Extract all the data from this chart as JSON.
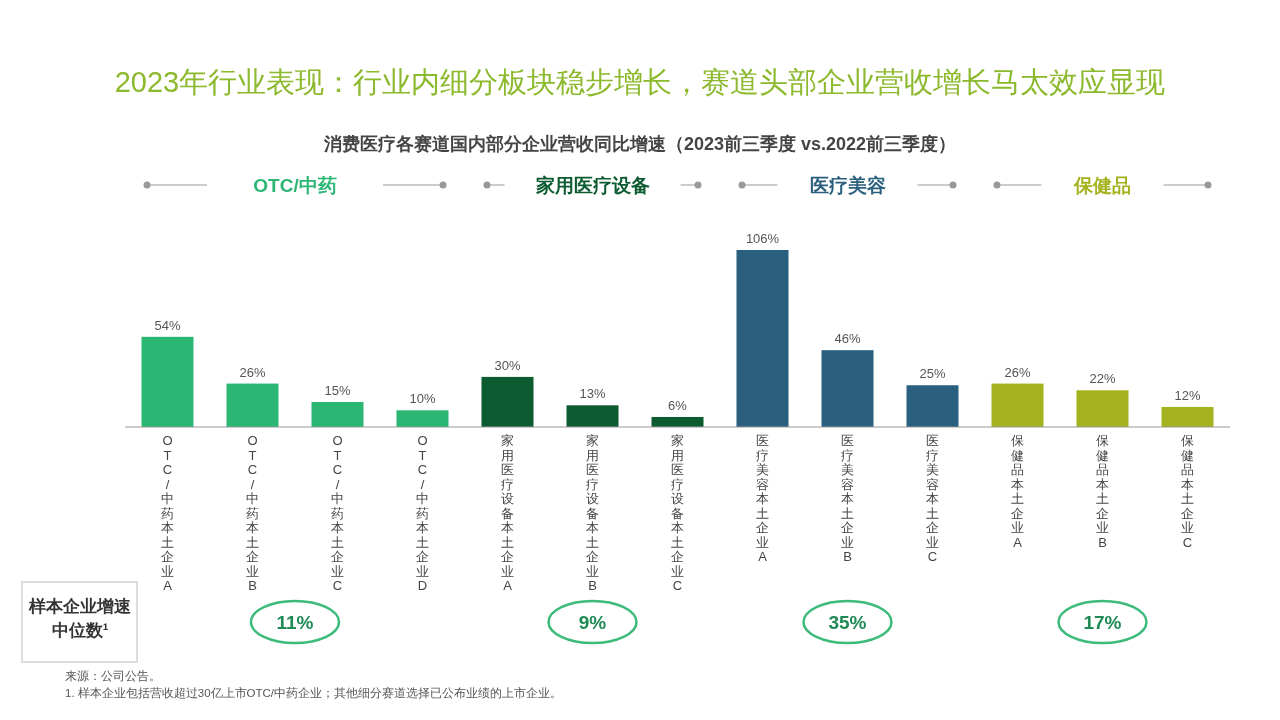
{
  "chart_data": {
    "type": "bar",
    "title": "2023年行业表现：行业内细分板块稳步增长，赛道头部企业营收增长马太效应显现",
    "subtitle": "消费医疗各赛道国内部分企业营收同比增速（2023前三季度 vs.2022前三季度）",
    "categories": [
      "OTC/中药本土企业A",
      "OTC/中药本土企业B",
      "OTC/中药本土企业C",
      "OTC/中药本土企业D",
      "家用医疗设备本土企业A",
      "家用医疗设备本土企业B",
      "家用医疗设备本土企业C",
      "医疗美容本土企业A",
      "医疗美容本土企业B",
      "医疗美容本土企业C",
      "保健品本土企业A",
      "保健品本土企业B",
      "保健品本土企业C"
    ],
    "values": [
      54,
      26,
      15,
      10,
      30,
      13,
      6,
      106,
      46,
      25,
      26,
      22,
      12
    ],
    "value_labels": [
      "54%",
      "26%",
      "15%",
      "10%",
      "30%",
      "13%",
      "6%",
      "106%",
      "46%",
      "25%",
      "26%",
      "22%",
      "12%"
    ],
    "colors": [
      "#2bb673",
      "#2bb673",
      "#2bb673",
      "#2bb673",
      "#0d5b30",
      "#0d5b30",
      "#0d5b30",
      "#2a5f7f",
      "#2a5f7f",
      "#2a5f7f",
      "#a4b21e",
      "#a4b21e",
      "#a4b21e"
    ],
    "tick_labels": "x",
    "legend": false,
    "grid": false,
    "annotations": [
      "OTC/中药",
      "家用医疗设备",
      "医疗美容",
      "保健品",
      "样本企业增速中位数¹",
      "11%",
      "9%",
      "35%",
      "17%",
      "来源：公司公告。",
      "1. 样本企业包括营收超过30亿上市OTC/中药企业；其他细分赛道选择已公布业绩的上市企业。"
    ]
  }
}
